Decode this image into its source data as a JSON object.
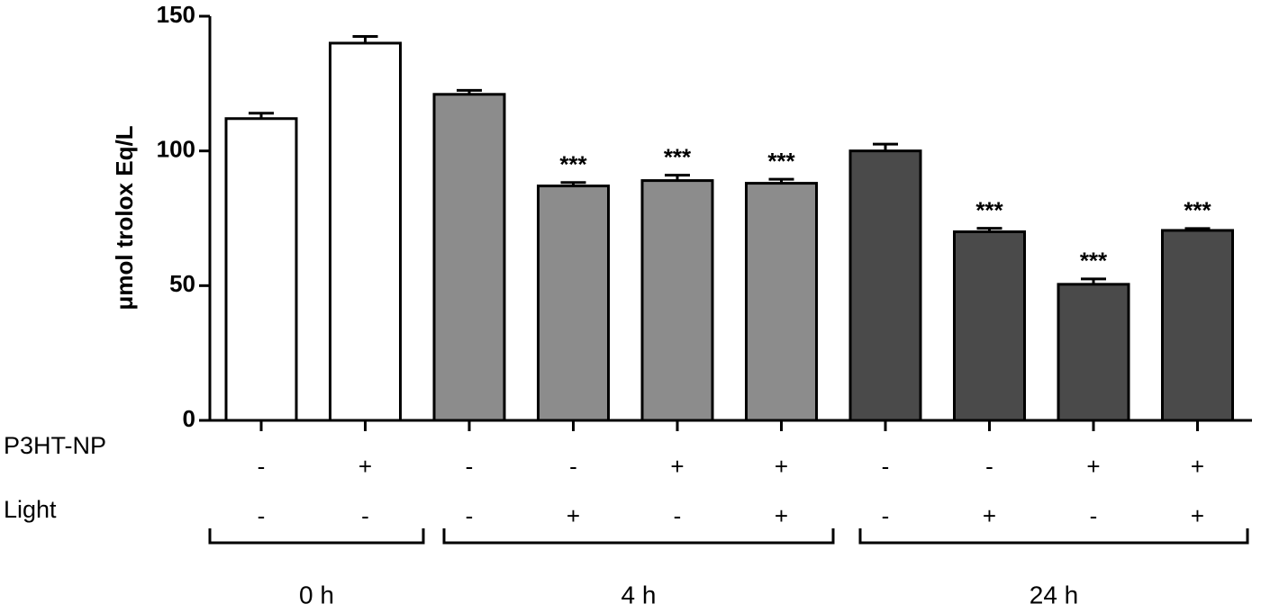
{
  "chart_data": {
    "type": "bar",
    "y_label": "μmol trolox Eq/L",
    "values": [
      112,
      140,
      121,
      87,
      89,
      88,
      100,
      70,
      50.5,
      70.5
    ],
    "errors": [
      2,
      2.5,
      1.5,
      1.3,
      2,
      1.5,
      2.5,
      1.3,
      2,
      0.7
    ],
    "colors": [
      "#ffffff",
      "#ffffff",
      "#8c8c8c",
      "#8c8c8c",
      "#8c8c8c",
      "#8c8c8c",
      "#4a4a4a",
      "#4a4a4a",
      "#4a4a4a",
      "#4a4a4a"
    ],
    "annotations": [
      null,
      null,
      null,
      "***",
      "***",
      "***",
      null,
      "***",
      "***",
      "***"
    ],
    "rows": [
      {
        "label": "P3HT-NP",
        "values": [
          "-",
          "+",
          "-",
          "-",
          "+",
          "+",
          "-",
          "-",
          "+",
          "+"
        ]
      },
      {
        "label": "Light",
        "values": [
          "-",
          "-",
          "-",
          "+",
          "-",
          "+",
          "-",
          "+",
          "-",
          "+"
        ]
      }
    ],
    "groups": [
      "0 h",
      "4 h",
      "24 h"
    ],
    "ylim": [
      0,
      150
    ],
    "yticks": [
      0,
      50,
      100,
      150
    ]
  }
}
